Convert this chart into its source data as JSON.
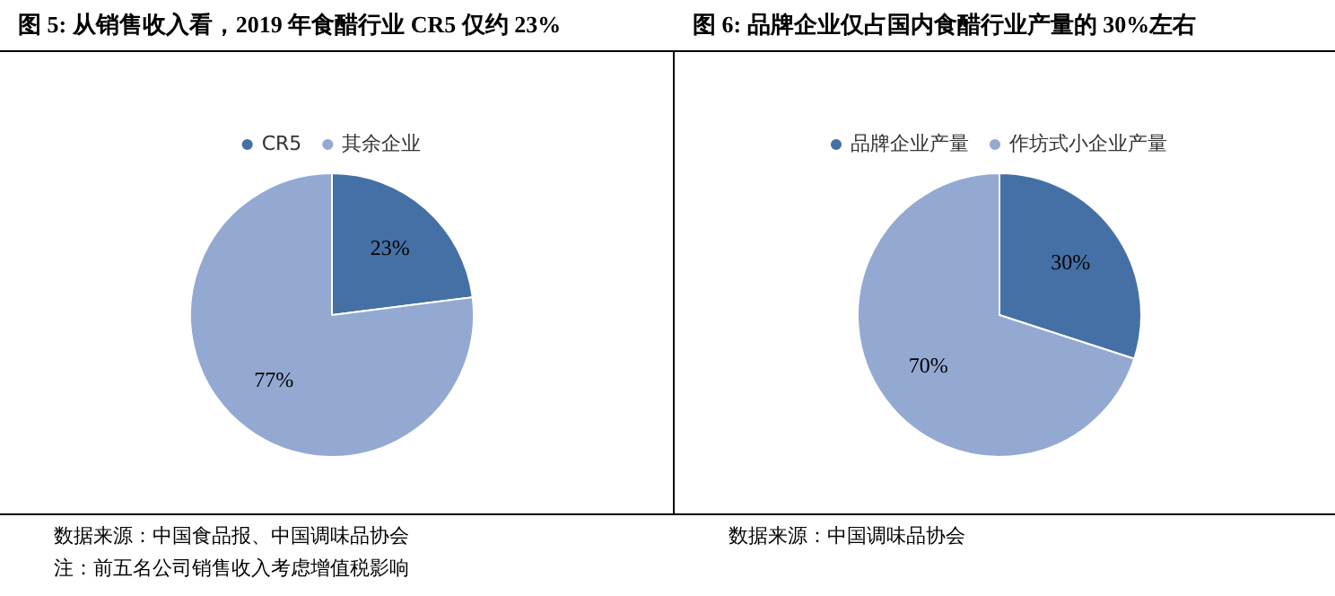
{
  "chart_data": [
    {
      "type": "pie",
      "title": "图 5:  从销售收入看，2019 年食醋行业 CR5 仅约 23%",
      "categories": [
        "CR5",
        "其余企业"
      ],
      "values": [
        23,
        77
      ],
      "colors": [
        "#4470a5",
        "#93a9d1"
      ],
      "value_labels": [
        "23%",
        "77%"
      ],
      "legend": "top",
      "annotations": [
        "数据来源：中国食品报、中国调味品协会",
        "注：前五名公司销售收入考虑增值税影响"
      ]
    },
    {
      "type": "pie",
      "title": "图 6:  品牌企业仅占国内食醋行业产量的 30%左右",
      "categories": [
        "品牌企业产量",
        "作坊式小企业产量"
      ],
      "values": [
        30,
        70
      ],
      "colors": [
        "#4470a5",
        "#93a9d1"
      ],
      "value_labels": [
        "30%",
        "70%"
      ],
      "legend": "top",
      "annotations": [
        "数据来源：中国调味品协会"
      ]
    }
  ]
}
